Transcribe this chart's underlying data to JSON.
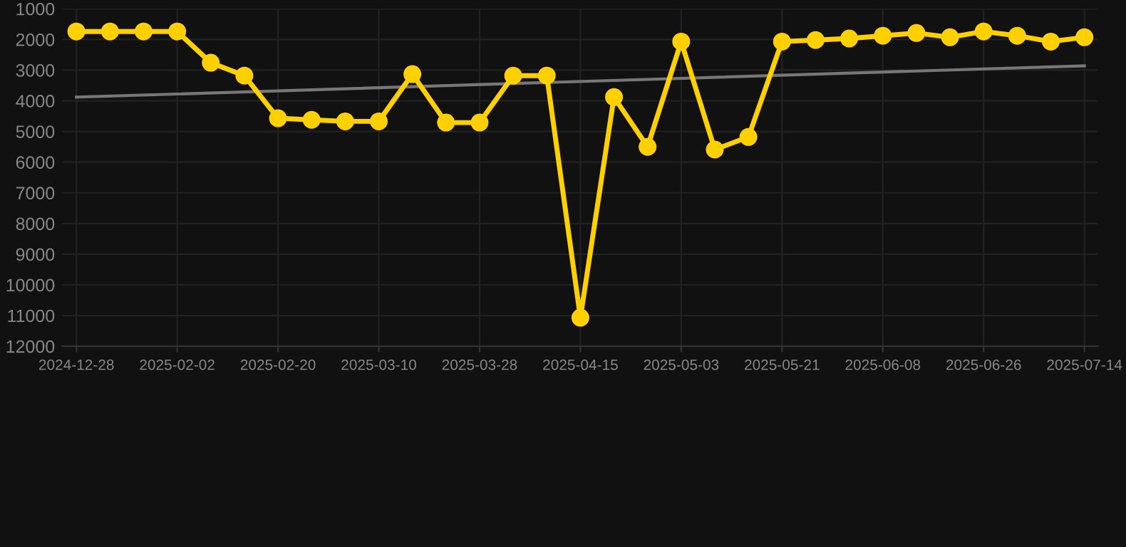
{
  "chart_data": {
    "type": "line",
    "categories": [
      "2024-12-28",
      null,
      null,
      "2025-02-02",
      null,
      null,
      "2025-02-20",
      null,
      null,
      "2025-03-10",
      null,
      null,
      "2025-03-28",
      null,
      null,
      "2025-04-15",
      null,
      null,
      "2025-05-03",
      null,
      null,
      "2025-05-21",
      null,
      null,
      "2025-06-08",
      null,
      null,
      "2025-06-26",
      null,
      null,
      "2025-07-14"
    ],
    "series": [
      {
        "color": "#ffd000",
        "marker": "circle",
        "values": [
          1740,
          1740,
          1740,
          1740,
          2760,
          3180,
          4570,
          4620,
          4670,
          4670,
          3130,
          4710,
          4710,
          3180,
          3180,
          11070,
          3880,
          5500,
          2070,
          5590,
          5180,
          2070,
          2020,
          1970,
          1880,
          1790,
          1930,
          1740,
          1880,
          2070,
          1930
        ]
      },
      {
        "color": "#777777",
        "marker": "none",
        "values": [
          3880,
          null,
          null,
          null,
          null,
          null,
          null,
          null,
          null,
          null,
          null,
          null,
          null,
          null,
          null,
          null,
          null,
          null,
          null,
          null,
          null,
          null,
          null,
          null,
          null,
          null,
          null,
          null,
          null,
          null,
          2860
        ]
      }
    ],
    "ylim": [
      12000,
      1000
    ],
    "yticks": [
      1000,
      2000,
      3000,
      4000,
      5000,
      6000,
      7000,
      8000,
      9000,
      10000,
      11000,
      12000
    ],
    "grid": true,
    "line_style": "solid"
  }
}
